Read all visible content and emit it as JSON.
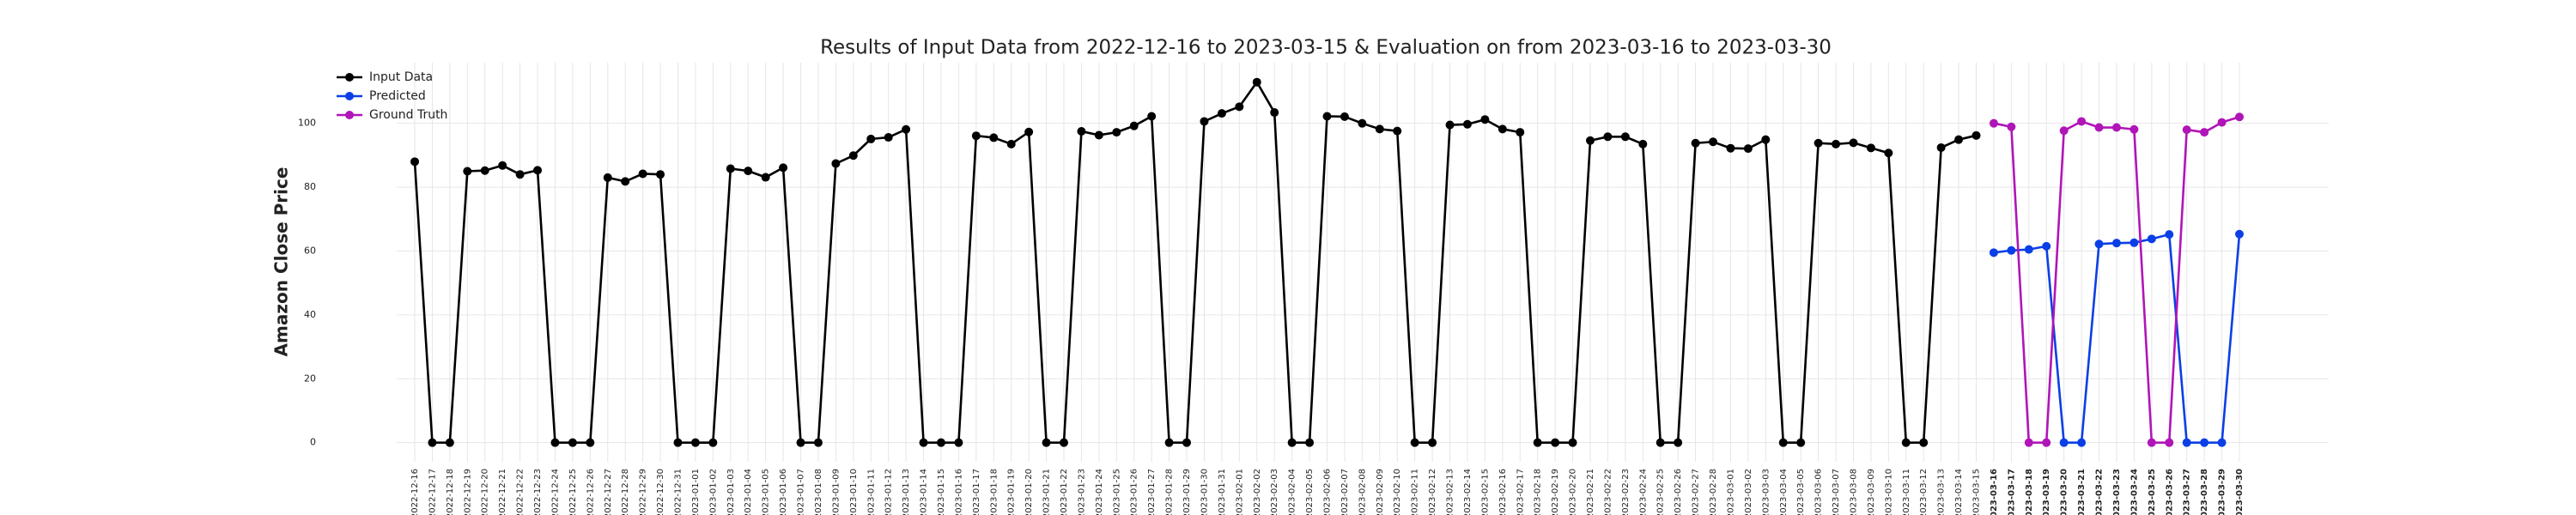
{
  "chart_data": {
    "type": "line",
    "title": "Results of Input Data from 2022-12-16 to 2023-03-15 & Evaluation on from 2023-03-16 to 2023-03-30",
    "y_label": "Amazon Close Price",
    "categories": [
      "2022-12-16",
      "2022-12-17",
      "2022-12-18",
      "2022-12-19",
      "2022-12-20",
      "2022-12-21",
      "2022-12-22",
      "2022-12-23",
      "2022-12-24",
      "2022-12-25",
      "2022-12-26",
      "2022-12-27",
      "2022-12-28",
      "2022-12-29",
      "2022-12-30",
      "2022-12-31",
      "2023-01-01",
      "2023-01-02",
      "2023-01-03",
      "2023-01-04",
      "2023-01-05",
      "2023-01-06",
      "2023-01-07",
      "2023-01-08",
      "2023-01-09",
      "2023-01-10",
      "2023-01-11",
      "2023-01-12",
      "2023-01-13",
      "2023-01-14",
      "2023-01-15",
      "2023-01-16",
      "2023-01-17",
      "2023-01-18",
      "2023-01-19",
      "2023-01-20",
      "2023-01-21",
      "2023-01-22",
      "2023-01-23",
      "2023-01-24",
      "2023-01-25",
      "2023-01-26",
      "2023-01-27",
      "2023-01-28",
      "2023-01-29",
      "2023-01-30",
      "2023-01-31",
      "2023-02-01",
      "2023-02-02",
      "2023-02-03",
      "2023-02-04",
      "2023-02-05",
      "2023-02-06",
      "2023-02-07",
      "2023-02-08",
      "2023-02-09",
      "2023-02-10",
      "2023-02-11",
      "2023-02-12",
      "2023-02-13",
      "2023-02-14",
      "2023-02-15",
      "2023-02-16",
      "2023-02-17",
      "2023-02-18",
      "2023-02-19",
      "2023-02-20",
      "2023-02-21",
      "2023-02-22",
      "2023-02-23",
      "2023-02-24",
      "2023-02-25",
      "2023-02-26",
      "2023-02-27",
      "2023-02-28",
      "2023-03-01",
      "2023-03-02",
      "2023-03-03",
      "2023-03-04",
      "2023-03-05",
      "2023-03-06",
      "2023-03-07",
      "2023-03-08",
      "2023-03-09",
      "2023-03-10",
      "2023-03-11",
      "2023-03-12",
      "2023-03-13",
      "2023-03-14",
      "2023-03-15",
      "2023-03-16",
      "2023-03-17",
      "2023-03-18",
      "2023-03-19",
      "2023-03-20",
      "2023-03-21",
      "2023-03-22",
      "2023-03-23",
      "2023-03-24",
      "2023-03-25",
      "2023-03-26",
      "2023-03-27",
      "2023-03-28",
      "2023-03-29",
      "2023-03-30"
    ],
    "series": [
      {
        "name": "Input Data",
        "color": "#000000",
        "values": [
          88,
          0,
          0,
          85,
          85.2,
          86.8,
          84,
          85.3,
          0,
          0,
          0,
          83,
          81.8,
          84.2,
          84,
          0,
          0,
          0,
          85.8,
          85.1,
          83.1,
          86.1,
          0,
          0,
          87.4,
          89.9,
          95.1,
          95.6,
          98.1,
          0,
          0,
          0,
          96.1,
          95.5,
          93.5,
          97.3,
          0,
          0,
          97.5,
          96.3,
          97.2,
          99.2,
          102.2,
          0,
          0,
          100.6,
          103.1,
          105.2,
          112.9,
          103.4,
          0,
          0,
          102.2,
          102.1,
          100,
          98.2,
          97.6,
          0,
          0,
          99.5,
          99.7,
          101.2,
          98.2,
          97.2,
          0,
          0,
          0,
          94.6,
          95.8,
          95.8,
          93.5,
          0,
          0,
          93.8,
          94.2,
          92.2,
          92.1,
          94.9,
          0,
          0,
          93.8,
          93.5,
          93.9,
          92.3,
          90.7,
          0,
          0,
          92.4,
          94.9,
          96.2,
          null,
          null,
          null,
          null,
          null,
          null,
          null,
          null,
          null,
          null,
          null,
          null,
          null,
          null,
          null
        ]
      },
      {
        "name": "Predicted",
        "color": "#0b3fe6",
        "values": [
          null,
          null,
          null,
          null,
          null,
          null,
          null,
          null,
          null,
          null,
          null,
          null,
          null,
          null,
          null,
          null,
          null,
          null,
          null,
          null,
          null,
          null,
          null,
          null,
          null,
          null,
          null,
          null,
          null,
          null,
          null,
          null,
          null,
          null,
          null,
          null,
          null,
          null,
          null,
          null,
          null,
          null,
          null,
          null,
          null,
          null,
          null,
          null,
          null,
          null,
          null,
          null,
          null,
          null,
          null,
          null,
          null,
          null,
          null,
          null,
          null,
          null,
          null,
          null,
          null,
          null,
          null,
          null,
          null,
          null,
          null,
          null,
          null,
          null,
          null,
          null,
          null,
          null,
          null,
          null,
          null,
          null,
          null,
          null,
          null,
          null,
          null,
          null,
          null,
          null,
          59.5,
          60.2,
          60.5,
          61.5,
          0,
          0,
          62.2,
          62.5,
          62.6,
          63.8,
          65.2,
          0,
          0,
          0,
          65.3
        ]
      },
      {
        "name": "Ground Truth",
        "color": "#b015b8",
        "values": [
          null,
          null,
          null,
          null,
          null,
          null,
          null,
          null,
          null,
          null,
          null,
          null,
          null,
          null,
          null,
          null,
          null,
          null,
          null,
          null,
          null,
          null,
          null,
          null,
          null,
          null,
          null,
          null,
          null,
          null,
          null,
          null,
          null,
          null,
          null,
          null,
          null,
          null,
          null,
          null,
          null,
          null,
          null,
          null,
          null,
          null,
          null,
          null,
          null,
          null,
          null,
          null,
          null,
          null,
          null,
          null,
          null,
          null,
          null,
          null,
          null,
          null,
          null,
          null,
          null,
          null,
          null,
          null,
          null,
          null,
          null,
          null,
          null,
          null,
          null,
          null,
          null,
          null,
          null,
          null,
          null,
          null,
          null,
          null,
          null,
          null,
          null,
          null,
          null,
          null,
          100,
          98.9,
          0,
          0,
          97.7,
          100.6,
          98.7,
          98.7,
          98.1,
          0,
          0,
          98,
          97.2,
          100.3,
          102
        ]
      }
    ],
    "ylim": [
      -6,
      119
    ],
    "yticks": [
      0,
      20,
      40,
      60,
      80,
      100
    ],
    "grid": true,
    "legend": "upper left"
  }
}
